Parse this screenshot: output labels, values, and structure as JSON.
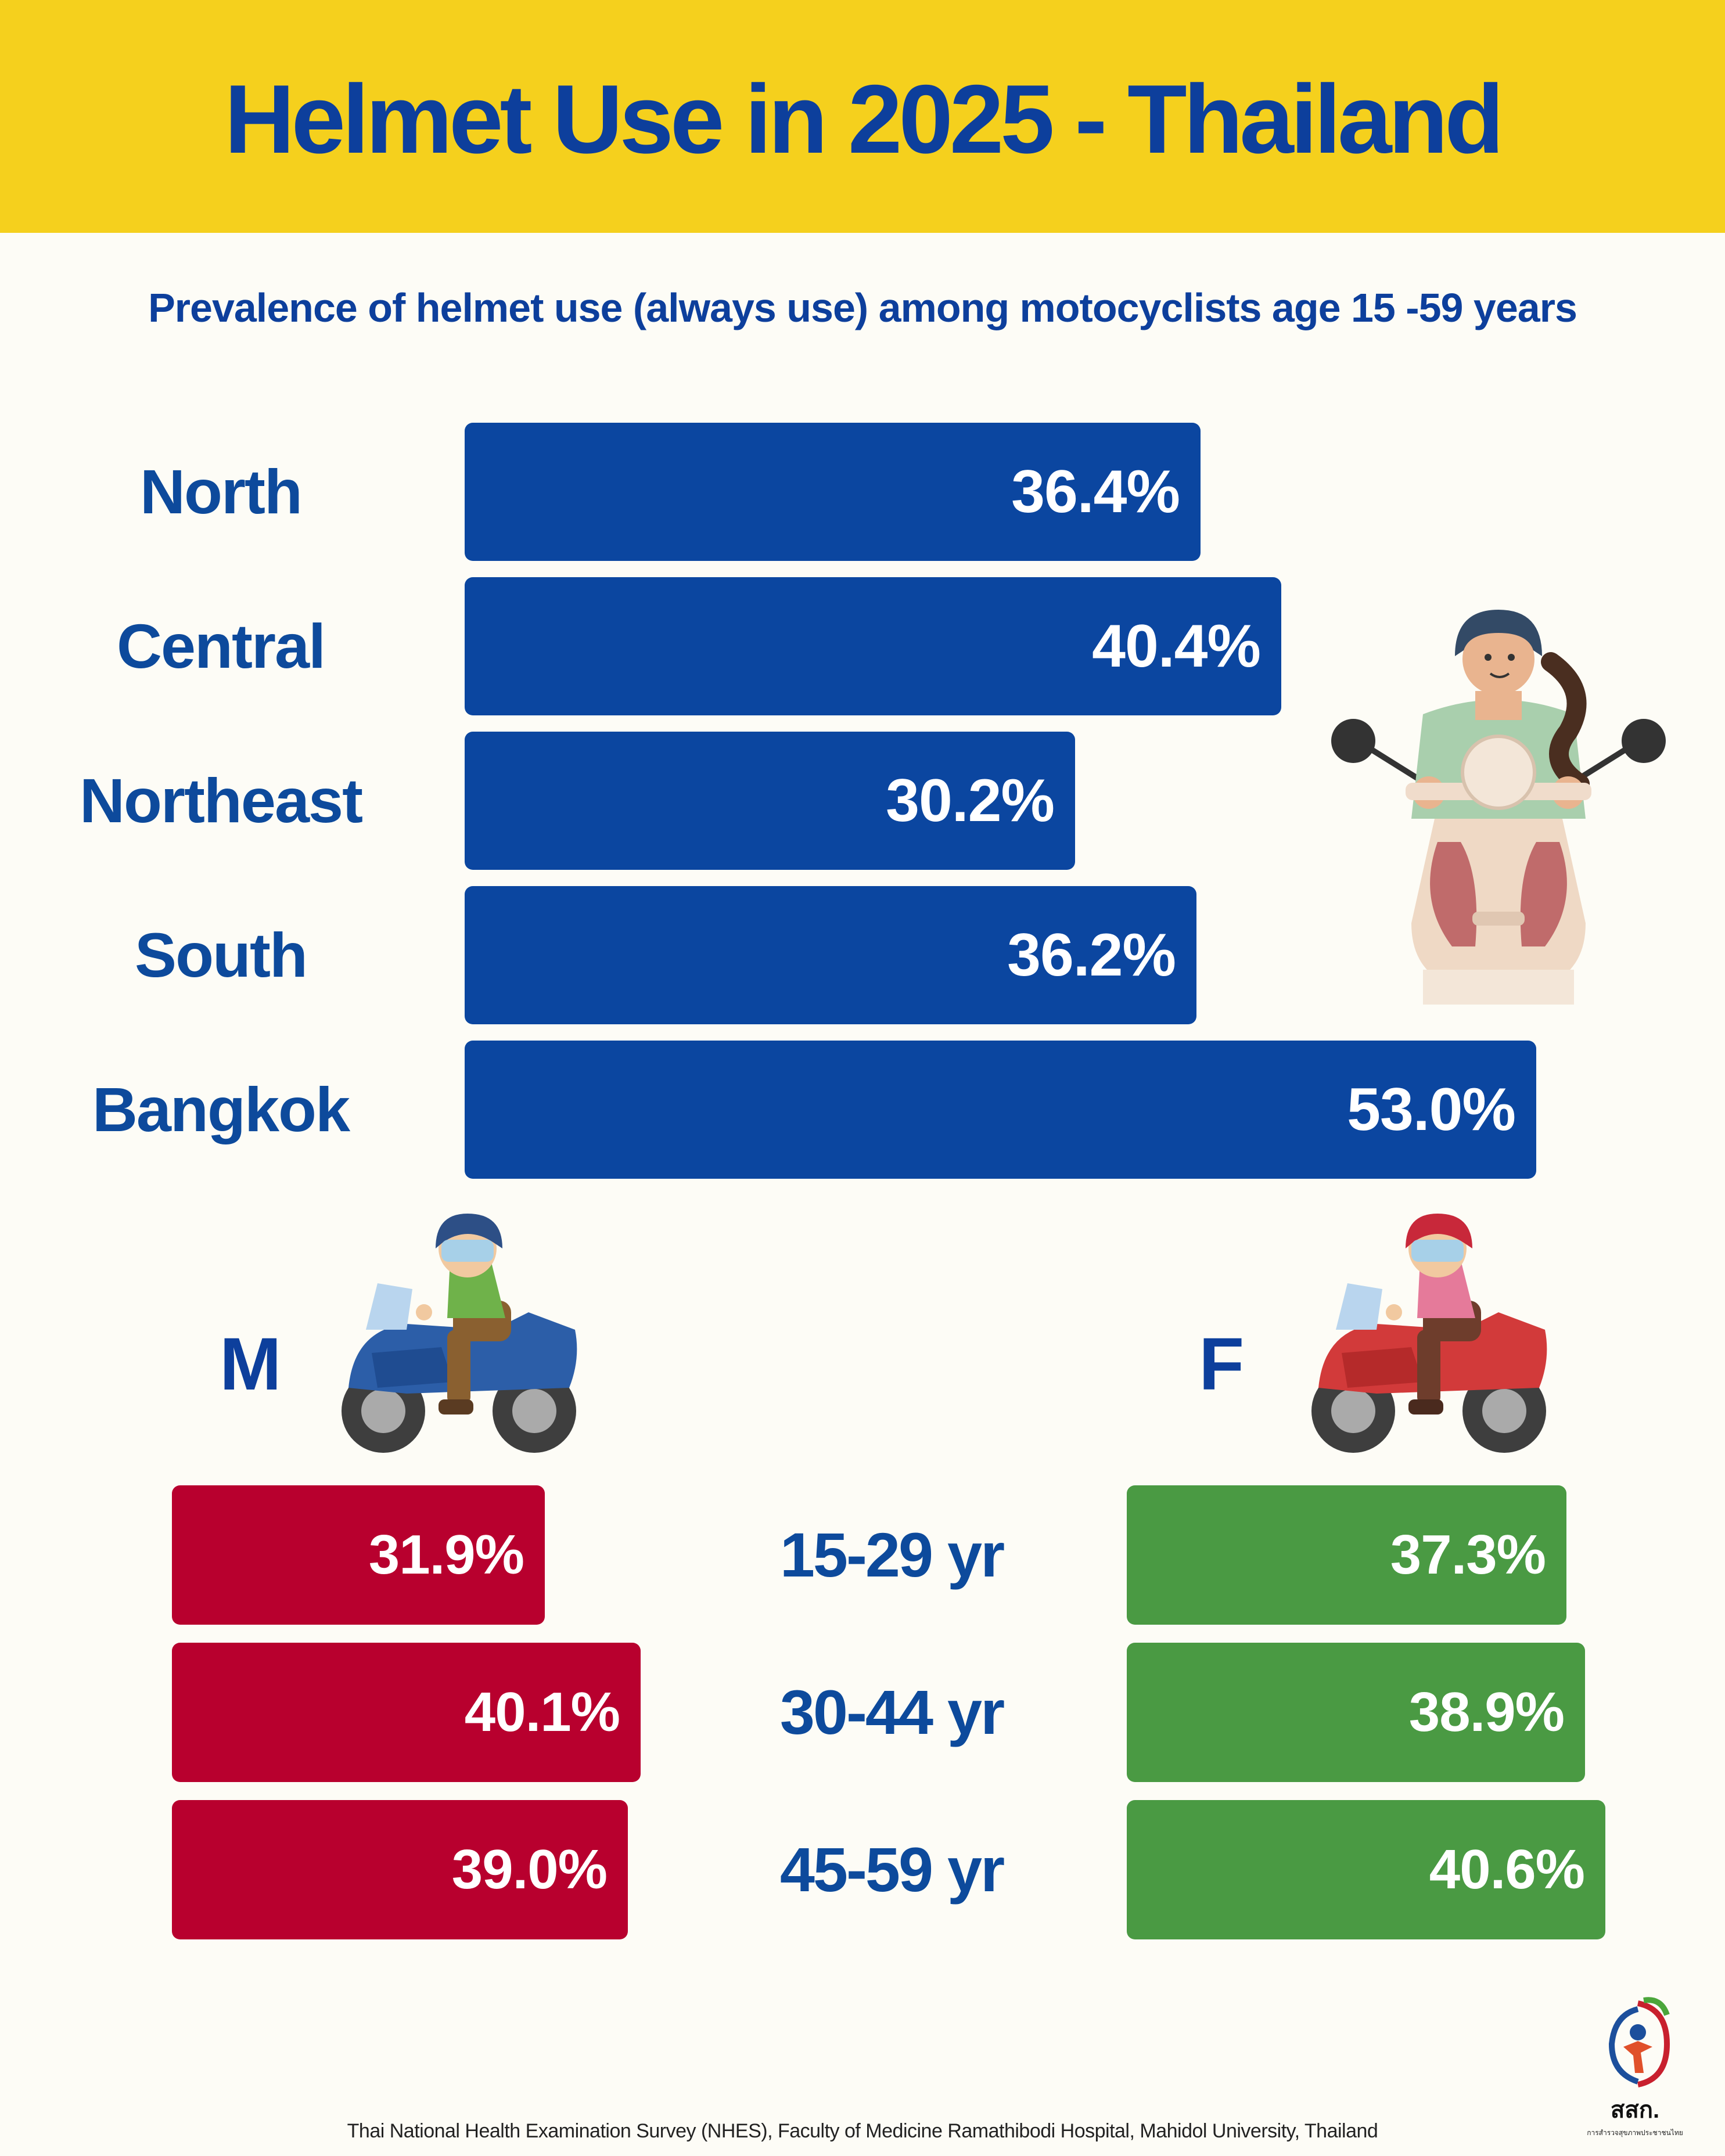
{
  "title": "Helmet Use in 2025 - Thailand",
  "subtitle": "Prevalence of  helmet use (always use) among motocyclists age 15 -59 years",
  "chart_data": [
    {
      "type": "bar",
      "orientation": "horizontal",
      "categories": [
        "North",
        "Central",
        "Northeast",
        "South",
        "Bangkok"
      ],
      "values": [
        36.4,
        40.4,
        30.2,
        36.2,
        53.0
      ],
      "labels": [
        "36.4%",
        "40.4%",
        "30.2%",
        "36.2%",
        "53.0%"
      ],
      "color": "#0b46a0"
    },
    {
      "type": "bar",
      "orientation": "horizontal",
      "series": [
        {
          "name": "M",
          "values": [
            31.9,
            40.1,
            39.0
          ],
          "labels": [
            "31.9%",
            "40.1%",
            "39.0%"
          ],
          "color": "#b8002e"
        },
        {
          "name": "F",
          "values": [
            37.3,
            38.9,
            40.6
          ],
          "labels": [
            "37.3%",
            "38.9%",
            "40.6%"
          ],
          "color": "#4a9a43"
        }
      ],
      "categories": [
        "15-29 yr",
        "30-44 yr",
        "45-59 yr"
      ]
    }
  ],
  "source": "Thai National Health Examination Survey (NHES), Faculty of Medicine Ramathibodi Hospital, Mahidol University, Thailand",
  "logo": {
    "text": "สสก.",
    "subtext": "การสำรวจสุขภาพประชาชนไทย"
  },
  "icons": [
    "woman-scooter-icon",
    "male-motorcyclist-icon",
    "female-motorcyclist-icon",
    "nhes-logo-icon"
  ]
}
